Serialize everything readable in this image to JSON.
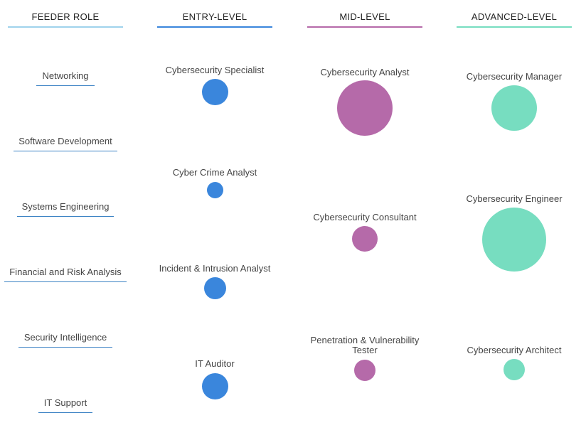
{
  "colors": {
    "feeder": "#9fd3ec",
    "entry": "#3a86dc",
    "mid": "#b56aa9",
    "advanced": "#77ddc0",
    "feeder_line": "#3b82c4"
  },
  "headers": {
    "feeder": "FEEDER ROLE",
    "entry": "ENTRY-LEVEL",
    "mid": "MID-LEVEL",
    "advanced": "ADVANCED-LEVEL"
  },
  "feeder_roles": [
    "Networking",
    "Software Development",
    "Systems Engineering",
    "Financial and Risk Analysis",
    "Security Intelligence",
    "IT Support"
  ],
  "entry_roles": [
    "Cybersecurity Specialist",
    "Cyber Crime Analyst",
    "Incident & Intrusion Analyst",
    "IT Auditor"
  ],
  "mid_roles": [
    "Cybersecurity Analyst",
    "Cybersecurity Consultant",
    "Penetration & Vulnerability Tester"
  ],
  "advanced_roles": [
    "Cybersecurity Manager",
    "Cybersecurity Engineer",
    "Cybersecurity Architect"
  ]
}
